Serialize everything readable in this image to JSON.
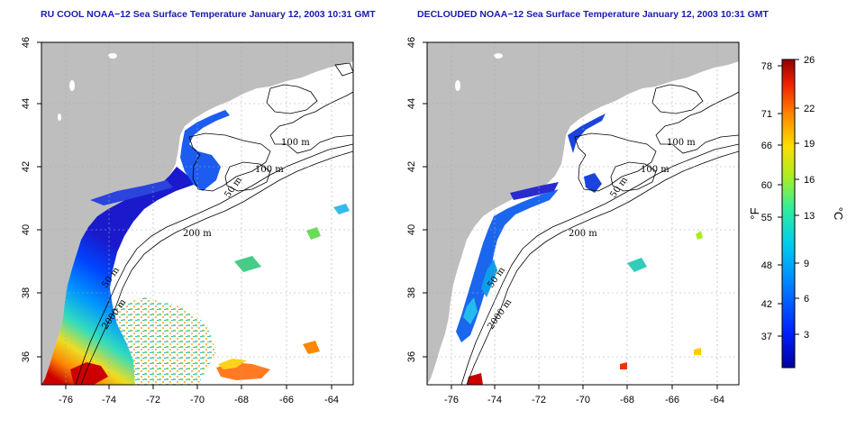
{
  "panels": [
    {
      "id": "left",
      "title": "RU COOL NOAA−12 Sea Surface Temperature January 12, 2003 10:31 GMT",
      "lon_ticks": [
        "-76",
        "-74",
        "-72",
        "-70",
        "-68",
        "-66",
        "-64"
      ],
      "lat_ticks": [
        "36",
        "38",
        "40",
        "42",
        "44",
        "46"
      ],
      "contour_labels": [
        "100 m",
        "100 m",
        "50 m",
        "200 m",
        "50 m",
        "2000 m"
      ]
    },
    {
      "id": "right",
      "title": "DECLOUDED NOAA−12 Sea Surface Temperature January 12, 2003 10:31 GMT",
      "lon_ticks": [
        "-76",
        "-74",
        "-72",
        "-70",
        "-68",
        "-66",
        "-64"
      ],
      "lat_ticks": [
        "36",
        "38",
        "40",
        "42",
        "44",
        "46"
      ],
      "contour_labels": [
        "100 m",
        "100 m",
        "50 m",
        "200 m",
        "50 m",
        "2000 m"
      ]
    }
  ],
  "colorbar": {
    "f_unit": "°F",
    "c_unit": "°C",
    "f_ticks": [
      "78",
      "71",
      "66",
      "60",
      "55",
      "48",
      "42",
      "37"
    ],
    "c_ticks": [
      "26",
      "22",
      "19",
      "16",
      "13",
      "9",
      "6",
      "3"
    ]
  },
  "colors": {
    "land": "#bebebe",
    "title": "#1a1ab0",
    "ramp": [
      "#0000a8",
      "#0033ff",
      "#0088ff",
      "#00ccee",
      "#33ee99",
      "#aaee22",
      "#ffdd00",
      "#ff8800",
      "#ee2200",
      "#990000"
    ]
  }
}
